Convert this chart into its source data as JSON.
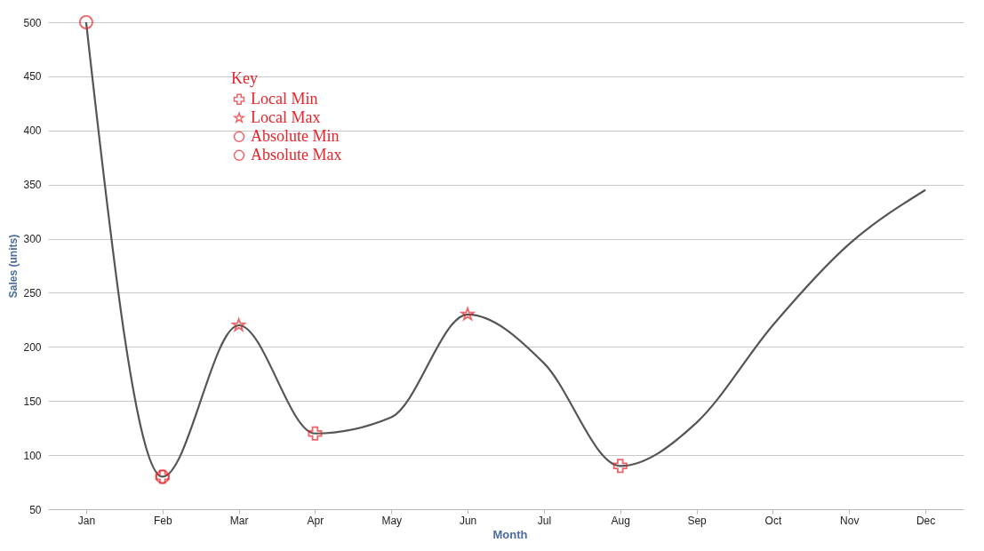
{
  "chart_data": {
    "type": "line",
    "xlabel": "Month",
    "ylabel": "Sales (units)",
    "legend_title": "Key",
    "legend": "top left",
    "grid": "y",
    "categories": [
      "Jan",
      "Feb",
      "Mar",
      "Apr",
      "May",
      "Jun",
      "Jul",
      "Aug",
      "Sep",
      "Oct",
      "Nov",
      "Dec"
    ],
    "ylim": [
      50,
      500
    ],
    "yticks": [
      50,
      100,
      150,
      200,
      250,
      300,
      350,
      400,
      450,
      500
    ],
    "series": [
      {
        "color": "#555555",
        "marker": "none",
        "line_style": "solid",
        "values": [
          500,
          80,
          220,
          120,
          135,
          230,
          185,
          90,
          130,
          220,
          295,
          345
        ]
      },
      {
        "type": "scatter",
        "name": "Local Min",
        "color": "#e8232a",
        "marker": "cross",
        "x": [
          "Feb",
          "Apr",
          "Aug"
        ],
        "values": [
          80,
          120,
          90
        ]
      },
      {
        "type": "scatter",
        "name": "Local Max",
        "color": "#e8232a",
        "marker": "star",
        "x": [
          "Mar",
          "Jun"
        ],
        "values": [
          220,
          230
        ]
      },
      {
        "type": "scatter",
        "name": "Absolute Min",
        "color": "#e8232a",
        "marker": "circle",
        "x": [
          "Feb"
        ],
        "values": [
          80
        ]
      },
      {
        "type": "scatter",
        "name": "Absolute Max",
        "color": "#e8232a",
        "marker": "circle",
        "x": [
          "Jan"
        ],
        "values": [
          500
        ]
      }
    ]
  }
}
